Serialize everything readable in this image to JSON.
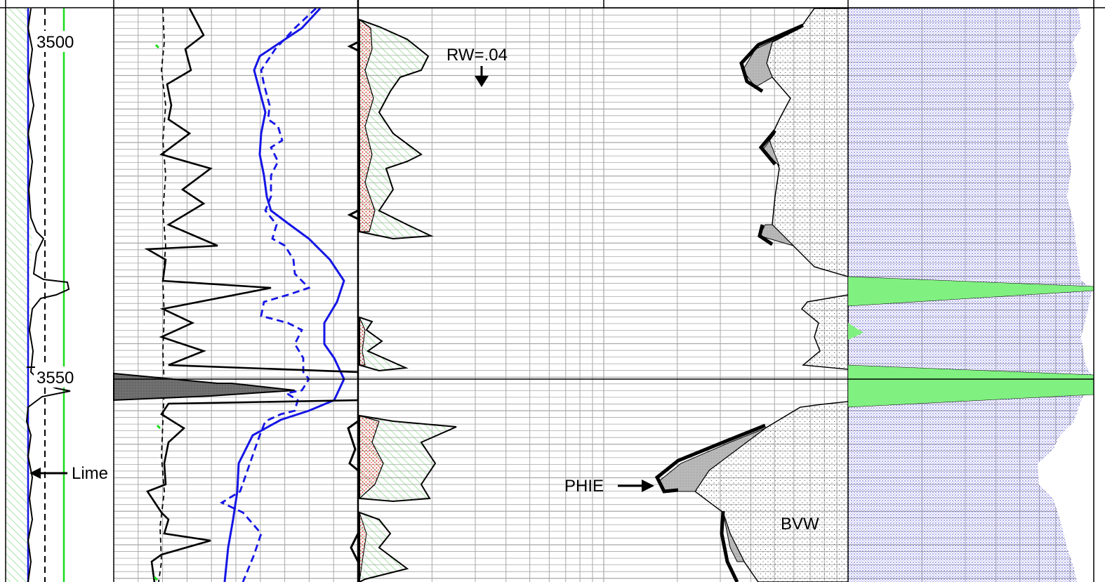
{
  "colors": {
    "track_line": "#000000",
    "grid": "#a8a8a8",
    "curve_blue": "#1515e6",
    "curve_green": "#19dc19",
    "hatch_green": "#6fcf6f",
    "dots_red": "#e03030",
    "dots_blue": "#4040d0",
    "bvw_dots": "#555555",
    "fill_gray": "#b0b0b0",
    "fill_dark": "#666666",
    "green_solid": "#80f080"
  },
  "labels": {
    "depth_top": "3500",
    "depth_mid": "3550",
    "lime": "Lime",
    "rw": "RW=.04",
    "phie": "PHIE",
    "bvw": "BVW"
  },
  "chart_data": {
    "type": "well-log",
    "depth_unit": "",
    "depth_ticks": [
      3500,
      3550
    ],
    "depth_range": [
      3495,
      3580
    ],
    "tracks": [
      {
        "name": "track-1",
        "curves": [
          "gamma-ray",
          "caliper",
          "bit-size",
          "lithology-lime"
        ],
        "annotation": "Lime"
      },
      {
        "name": "track-2",
        "curves": [
          "sp",
          "resistivity-deep",
          "resistivity-shallow",
          "microlog"
        ]
      },
      {
        "name": "track-3",
        "curves": [
          "porosity-fill",
          "rw-annotation"
        ],
        "annotation": "RW=.04"
      },
      {
        "name": "track-4",
        "curves": [
          "phie",
          "bvw",
          "hydrocarbon-fill"
        ],
        "annotations": [
          "PHIE",
          "BVW"
        ]
      }
    ]
  }
}
